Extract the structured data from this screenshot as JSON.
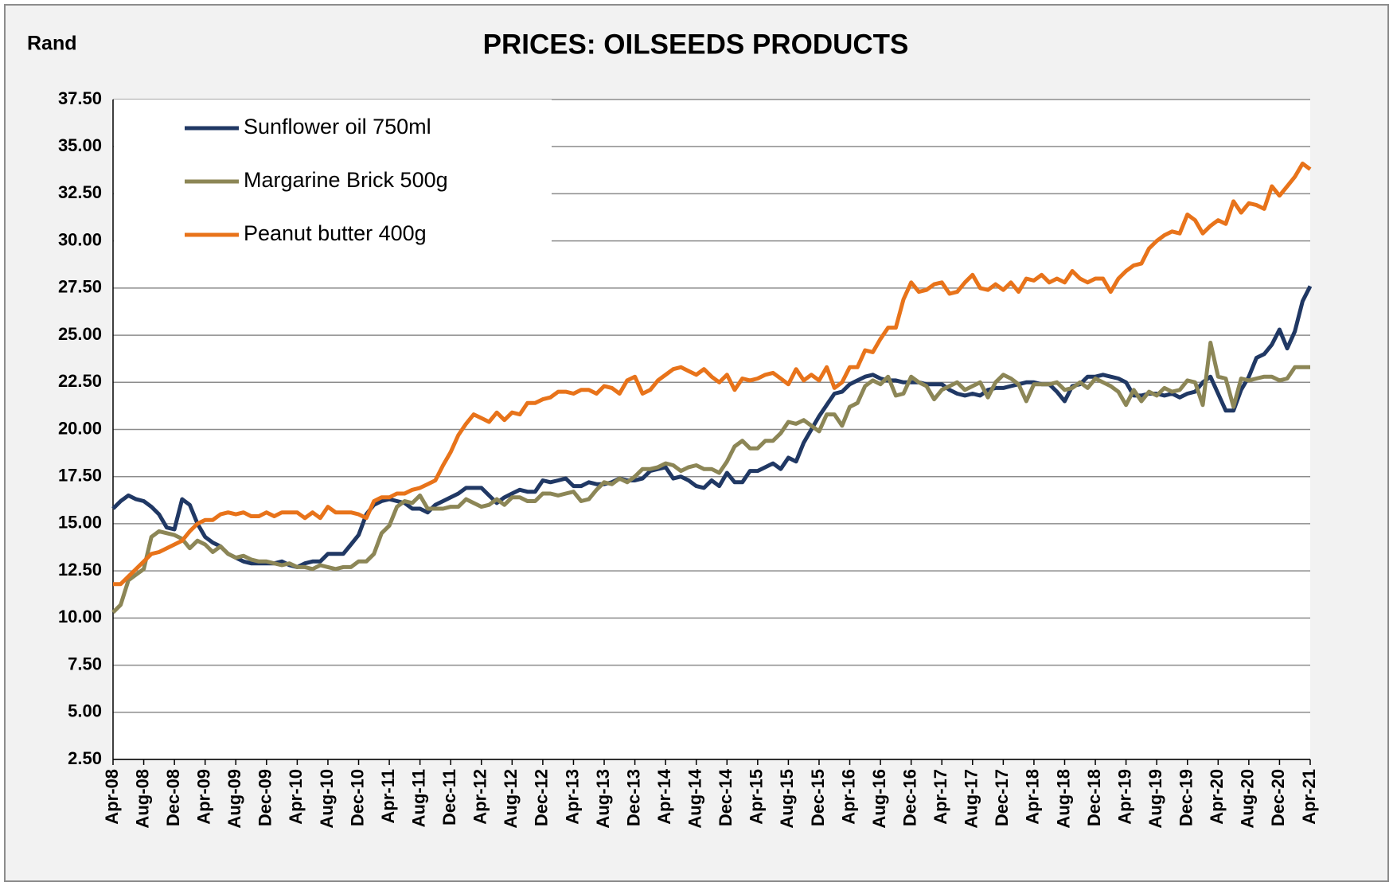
{
  "chart_data": {
    "type": "line",
    "title": "PRICES: OILSEEDS PRODUCTS",
    "y_label": "Rand",
    "categories": [
      "Apr-08",
      null,
      null,
      null,
      "Aug-08",
      null,
      null,
      null,
      "Dec-08",
      null,
      null,
      null,
      "Apr-09",
      null,
      null,
      null,
      "Aug-09",
      null,
      null,
      null,
      "Dec-09",
      null,
      null,
      null,
      "Apr-10",
      null,
      null,
      null,
      "Aug-10",
      null,
      null,
      null,
      "Dec-10",
      null,
      null,
      null,
      "Apr-11",
      null,
      null,
      null,
      "Aug-11",
      null,
      null,
      null,
      "Dec-11",
      null,
      null,
      null,
      "Apr-12",
      null,
      null,
      null,
      "Aug-12",
      null,
      null,
      null,
      "Dec-12",
      null,
      null,
      null,
      "Apr-13",
      null,
      null,
      null,
      "Aug-13",
      null,
      null,
      null,
      "Dec-13",
      null,
      null,
      null,
      "Apr-14",
      null,
      null,
      null,
      "Aug-14",
      null,
      null,
      null,
      "Dec-14",
      null,
      null,
      null,
      "Apr-15",
      null,
      null,
      null,
      "Aug-15",
      null,
      null,
      null,
      "Dec-15",
      null,
      null,
      null,
      "Apr-16",
      null,
      null,
      null,
      "Aug-16",
      null,
      null,
      null,
      "Dec-16",
      null,
      null,
      null,
      "Apr-17",
      null,
      null,
      null,
      "Aug-17",
      null,
      null,
      null,
      "Dec-17",
      null,
      null,
      null,
      "Apr-18",
      null,
      null,
      null,
      "Aug-18",
      null,
      null,
      null,
      "Dec-18",
      null,
      null,
      null,
      "Apr-19",
      null,
      null,
      null,
      "Aug-19",
      null,
      null,
      null,
      "Dec-19",
      null,
      null,
      null,
      "Apr-20",
      null,
      null,
      null,
      "Aug-20",
      null,
      null,
      null,
      "Dec-20",
      null,
      null,
      null,
      "Apr-21"
    ],
    "series": [
      {
        "name": "Sunflower oil 750ml",
        "color": "#203864",
        "values": [
          15.8,
          16.2,
          16.5,
          16.3,
          16.2,
          15.9,
          15.5,
          14.8,
          14.7,
          16.3,
          16.0,
          15.0,
          14.3,
          14.0,
          13.8,
          13.4,
          13.2,
          13.0,
          12.9,
          12.9,
          12.9,
          12.9,
          13.0,
          12.8,
          12.7,
          12.9,
          13.0,
          13.0,
          13.4,
          13.4,
          13.4,
          13.9,
          14.4,
          15.5,
          16.0,
          16.2,
          16.3,
          16.2,
          16.1,
          15.8,
          15.8,
          15.6,
          16.0,
          16.2,
          16.4,
          16.6,
          16.9,
          16.9,
          16.9,
          16.5,
          16.1,
          16.4,
          16.6,
          16.8,
          16.7,
          16.7,
          17.3,
          17.2,
          17.3,
          17.4,
          17.0,
          17.0,
          17.2,
          17.1,
          17.1,
          17.2,
          17.4,
          17.3,
          17.3,
          17.4,
          17.8,
          17.9,
          18.0,
          17.4,
          17.5,
          17.3,
          17.0,
          16.9,
          17.3,
          17.0,
          17.7,
          17.2,
          17.2,
          17.8,
          17.8,
          18.0,
          18.2,
          17.9,
          18.5,
          18.3,
          19.3,
          20.0,
          20.7,
          21.3,
          21.9,
          22.0,
          22.4,
          22.6,
          22.8,
          22.9,
          22.7,
          22.6,
          22.6,
          22.5,
          22.5,
          22.5,
          22.4,
          22.4,
          22.4,
          22.1,
          21.9,
          21.8,
          21.9,
          21.8,
          22.1,
          22.2,
          22.2,
          22.3,
          22.4,
          22.5,
          22.5,
          22.4,
          22.4,
          22.0,
          21.5,
          22.3,
          22.4,
          22.8,
          22.8,
          22.9,
          22.8,
          22.7,
          22.5,
          21.8,
          21.8,
          21.9,
          21.9,
          21.8,
          21.9,
          21.7,
          21.9,
          22.0,
          22.5,
          22.8,
          21.9,
          21.0,
          21.0,
          22.1,
          22.8,
          23.8,
          24.0,
          24.5,
          25.3,
          24.3,
          25.2,
          26.8,
          27.6
        ]
      },
      {
        "name": "Margarine Brick 500g",
        "color": "#8c8656",
        "values": [
          10.3,
          10.7,
          12.0,
          12.3,
          12.6,
          14.3,
          14.6,
          14.5,
          14.4,
          14.2,
          13.7,
          14.1,
          13.9,
          13.5,
          13.8,
          13.4,
          13.2,
          13.3,
          13.1,
          13.0,
          13.0,
          12.9,
          12.8,
          12.9,
          12.7,
          12.7,
          12.6,
          12.8,
          12.7,
          12.6,
          12.7,
          12.7,
          13.0,
          13.0,
          13.4,
          14.5,
          14.9,
          15.9,
          16.2,
          16.1,
          16.5,
          15.8,
          15.8,
          15.8,
          15.9,
          15.9,
          16.3,
          16.1,
          15.9,
          16.0,
          16.3,
          16.0,
          16.4,
          16.4,
          16.2,
          16.2,
          16.6,
          16.6,
          16.5,
          16.6,
          16.7,
          16.2,
          16.3,
          16.8,
          17.2,
          17.1,
          17.4,
          17.2,
          17.5,
          17.9,
          17.9,
          18.0,
          18.2,
          18.1,
          17.8,
          18.0,
          18.1,
          17.9,
          17.9,
          17.7,
          18.3,
          19.1,
          19.4,
          19.0,
          19.0,
          19.4,
          19.4,
          19.8,
          20.4,
          20.3,
          20.5,
          20.2,
          19.9,
          20.8,
          20.8,
          20.2,
          21.2,
          21.4,
          22.3,
          22.6,
          22.4,
          22.8,
          21.8,
          21.9,
          22.8,
          22.5,
          22.3,
          21.6,
          22.1,
          22.3,
          22.5,
          22.1,
          22.3,
          22.5,
          21.7,
          22.5,
          22.9,
          22.7,
          22.4,
          21.5,
          22.4,
          22.4,
          22.4,
          22.5,
          22.1,
          22.2,
          22.5,
          22.2,
          22.7,
          22.5,
          22.3,
          22.0,
          21.3,
          22.1,
          21.5,
          22.0,
          21.8,
          22.2,
          22.0,
          22.1,
          22.6,
          22.5,
          21.3,
          24.6,
          22.8,
          22.7,
          21.2,
          22.7,
          22.6,
          22.7,
          22.8,
          22.8,
          22.6,
          22.7,
          23.3,
          23.3,
          23.3
        ]
      },
      {
        "name": "Peanut butter 400g",
        "color": "#e8731a",
        "values": [
          11.8,
          11.8,
          12.2,
          12.6,
          13.0,
          13.4,
          13.5,
          13.7,
          13.9,
          14.1,
          14.6,
          15.0,
          15.2,
          15.2,
          15.5,
          15.6,
          15.5,
          15.6,
          15.4,
          15.4,
          15.6,
          15.4,
          15.6,
          15.6,
          15.6,
          15.3,
          15.6,
          15.3,
          15.9,
          15.6,
          15.6,
          15.6,
          15.5,
          15.3,
          16.2,
          16.4,
          16.4,
          16.6,
          16.6,
          16.8,
          16.9,
          17.1,
          17.3,
          18.1,
          18.8,
          19.7,
          20.3,
          20.8,
          20.6,
          20.4,
          20.9,
          20.5,
          20.9,
          20.8,
          21.4,
          21.4,
          21.6,
          21.7,
          22.0,
          22.0,
          21.9,
          22.1,
          22.1,
          21.9,
          22.3,
          22.2,
          21.9,
          22.6,
          22.8,
          21.9,
          22.1,
          22.6,
          22.9,
          23.2,
          23.3,
          23.1,
          22.9,
          23.2,
          22.8,
          22.5,
          22.9,
          22.1,
          22.7,
          22.6,
          22.7,
          22.9,
          23.0,
          22.7,
          22.4,
          23.2,
          22.6,
          22.9,
          22.6,
          23.3,
          22.2,
          22.5,
          23.3,
          23.3,
          24.2,
          24.1,
          24.8,
          25.4,
          25.4,
          26.9,
          27.8,
          27.3,
          27.4,
          27.7,
          27.8,
          27.2,
          27.3,
          27.8,
          28.2,
          27.5,
          27.4,
          27.7,
          27.4,
          27.8,
          27.3,
          28.0,
          27.9,
          28.2,
          27.8,
          28.0,
          27.8,
          28.4,
          28.0,
          27.8,
          28.0,
          28.0,
          27.3,
          28.0,
          28.4,
          28.7,
          28.8,
          29.6,
          30.0,
          30.3,
          30.5,
          30.4,
          31.4,
          31.1,
          30.4,
          30.8,
          31.1,
          30.9,
          32.1,
          31.5,
          32.0,
          31.9,
          31.7,
          32.9,
          32.4,
          32.9,
          33.4,
          34.1,
          33.8
        ]
      }
    ],
    "ylim": [
      2.5,
      37.5
    ],
    "yticks": [
      {
        "value": 2.5,
        "label": "2.50"
      },
      {
        "value": 5,
        "label": "5.00"
      },
      {
        "value": 7.5,
        "label": "7.50"
      },
      {
        "value": 10,
        "label": "10.00"
      },
      {
        "value": 12.5,
        "label": "12.50"
      },
      {
        "value": 15,
        "label": "15.00"
      },
      {
        "value": 17.5,
        "label": "17.50"
      },
      {
        "value": 20,
        "label": "20.00"
      },
      {
        "value": 22.5,
        "label": "22.50"
      },
      {
        "value": 25,
        "label": "25.00"
      },
      {
        "value": 27.5,
        "label": "27.50"
      },
      {
        "value": 30,
        "label": "30.00"
      },
      {
        "value": 32.5,
        "label": "32.50"
      },
      {
        "value": 35,
        "label": "35.00"
      },
      {
        "value": 37.5,
        "label": "37.50"
      }
    ],
    "grid": true,
    "legend": "upper left"
  }
}
